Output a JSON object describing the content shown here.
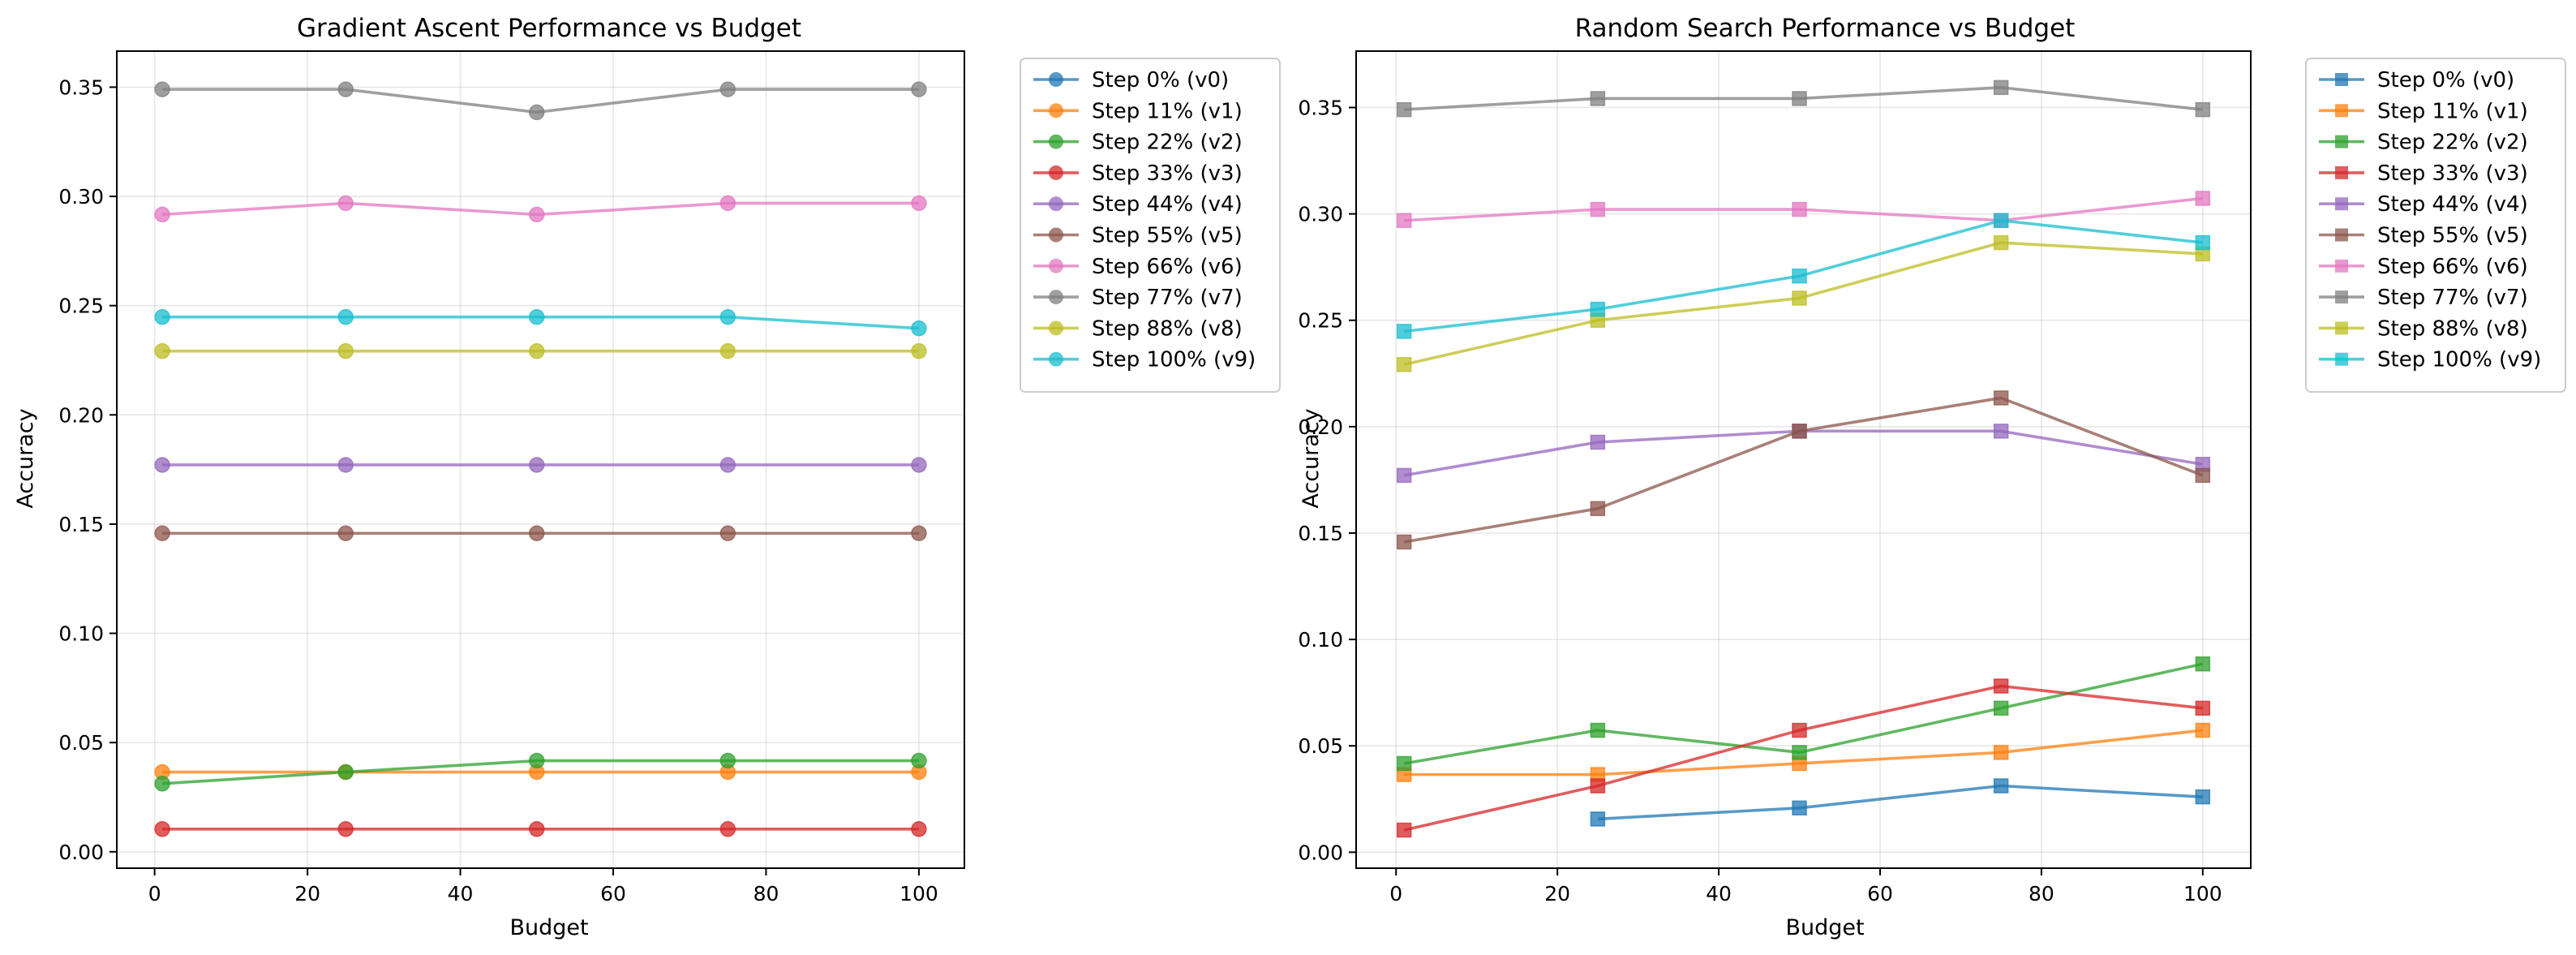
{
  "chart_data": [
    {
      "type": "line",
      "title": "Gradient Ascent Performance vs Budget",
      "xlabel": "Budget",
      "ylabel": "Accuracy",
      "xlim": [
        -4.95,
        105.95
      ],
      "ylim": [
        -0.0075,
        0.3665
      ],
      "xticks": [
        0,
        20,
        40,
        60,
        80,
        100
      ],
      "yticks": [
        0.0,
        0.05,
        0.1,
        0.15,
        0.2,
        0.25,
        0.3,
        0.35
      ],
      "grid": true,
      "marker": "circle",
      "legend_position": "outside-upper-right",
      "x": [
        1,
        25,
        50,
        75,
        100
      ],
      "series": [
        {
          "name": "Step 0% (v0)",
          "color": "#1f77b4",
          "values": [
            null,
            null,
            null,
            null,
            null
          ]
        },
        {
          "name": "Step 11% (v1)",
          "color": "#ff7f0e",
          "values": [
            0.0365,
            0.0365,
            0.0365,
            0.0365,
            0.0365
          ]
        },
        {
          "name": "Step 22% (v2)",
          "color": "#2ca02c",
          "values": [
            0.0312,
            0.0365,
            0.0417,
            0.0417,
            0.0417
          ]
        },
        {
          "name": "Step 33% (v3)",
          "color": "#d62728",
          "values": [
            0.0104,
            0.0104,
            0.0104,
            0.0104,
            0.0104
          ]
        },
        {
          "name": "Step 44% (v4)",
          "color": "#9467bd",
          "values": [
            0.1771,
            0.1771,
            0.1771,
            0.1771,
            0.1771
          ]
        },
        {
          "name": "Step 55% (v5)",
          "color": "#8c564b",
          "values": [
            0.1458,
            0.1458,
            0.1458,
            0.1458,
            0.1458
          ]
        },
        {
          "name": "Step 66% (v6)",
          "color": "#e377c2",
          "values": [
            0.2917,
            0.2969,
            0.2917,
            0.2969,
            0.2969
          ]
        },
        {
          "name": "Step 77% (v7)",
          "color": "#7f7f7f",
          "values": [
            0.349,
            0.349,
            0.3385,
            0.349,
            0.349
          ]
        },
        {
          "name": "Step 88% (v8)",
          "color": "#bcbd22",
          "values": [
            0.2292,
            0.2292,
            0.2292,
            0.2292,
            0.2292
          ]
        },
        {
          "name": "Step 100% (v9)",
          "color": "#17becf",
          "values": [
            0.2448,
            0.2448,
            0.2448,
            0.2448,
            0.2396
          ]
        }
      ]
    },
    {
      "type": "line",
      "title": "Random Search Performance vs Budget",
      "xlabel": "Budget",
      "ylabel": "Accuracy",
      "xlim": [
        -4.95,
        105.95
      ],
      "ylim": [
        -0.0075,
        0.3765
      ],
      "xticks": [
        0,
        20,
        40,
        60,
        80,
        100
      ],
      "yticks": [
        0.0,
        0.05,
        0.1,
        0.15,
        0.2,
        0.25,
        0.3,
        0.35
      ],
      "grid": true,
      "marker": "square",
      "legend_position": "outside-upper-right",
      "x": [
        1,
        25,
        50,
        75,
        100
      ],
      "series": [
        {
          "name": "Step 0% (v0)",
          "color": "#1f77b4",
          "values": [
            null,
            0.0156,
            0.0208,
            0.0312,
            0.026
          ]
        },
        {
          "name": "Step 11% (v1)",
          "color": "#ff7f0e",
          "values": [
            0.0365,
            0.0365,
            0.0417,
            0.0469,
            0.0573
          ]
        },
        {
          "name": "Step 22% (v2)",
          "color": "#2ca02c",
          "values": [
            0.0417,
            0.0573,
            0.0469,
            0.0677,
            0.0885
          ]
        },
        {
          "name": "Step 33% (v3)",
          "color": "#d62728",
          "values": [
            0.0104,
            0.0312,
            0.0573,
            0.0781,
            0.0677
          ]
        },
        {
          "name": "Step 44% (v4)",
          "color": "#9467bd",
          "values": [
            0.1771,
            0.1927,
            0.1979,
            0.1979,
            0.1823
          ]
        },
        {
          "name": "Step 55% (v5)",
          "color": "#8c564b",
          "values": [
            0.1458,
            0.1615,
            0.1979,
            0.2135,
            0.1771
          ]
        },
        {
          "name": "Step 66% (v6)",
          "color": "#e377c2",
          "values": [
            0.2969,
            0.3021,
            0.3021,
            0.2969,
            0.3073
          ]
        },
        {
          "name": "Step 77% (v7)",
          "color": "#7f7f7f",
          "values": [
            0.349,
            0.3542,
            0.3542,
            0.3594,
            0.349
          ]
        },
        {
          "name": "Step 88% (v8)",
          "color": "#bcbd22",
          "values": [
            0.2292,
            0.25,
            0.2604,
            0.2865,
            0.2812
          ]
        },
        {
          "name": "Step 100% (v9)",
          "color": "#17becf",
          "values": [
            0.2448,
            0.2552,
            0.2708,
            0.2969,
            0.2865
          ]
        }
      ]
    }
  ]
}
